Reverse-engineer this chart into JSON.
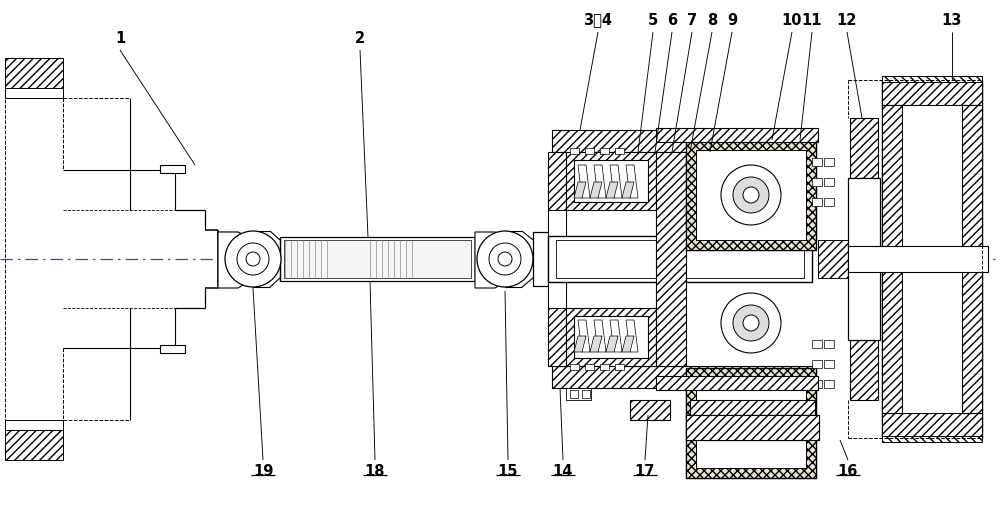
{
  "bg_color": "#ffffff",
  "lc": "#000000",
  "fig_width": 10.0,
  "fig_height": 5.18,
  "label_fontsize": 10.5
}
